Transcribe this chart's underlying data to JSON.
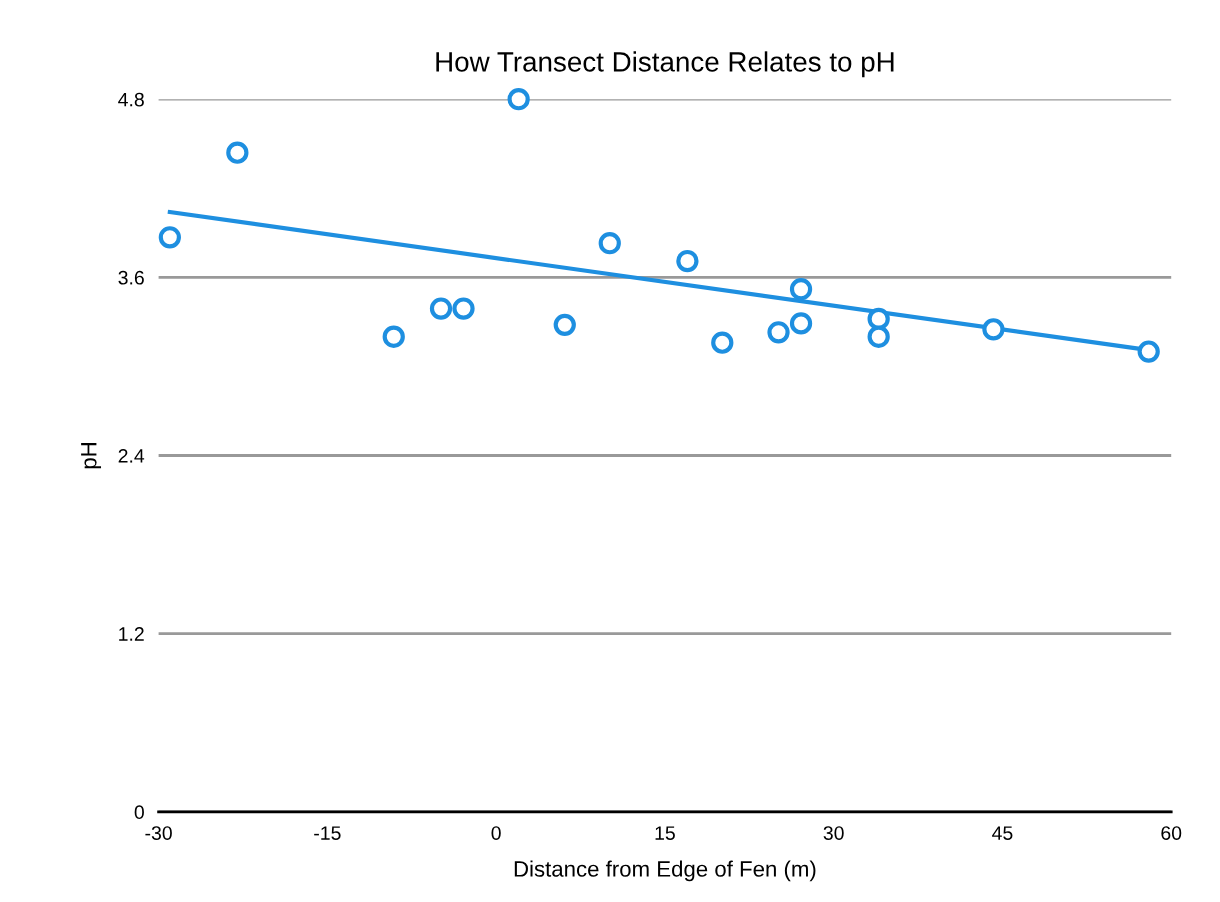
{
  "chart_data": {
    "type": "scatter",
    "title": "How Transect Distance Relates to pH",
    "xlabel": "Distance from Edge of Fen (m)",
    "ylabel": "pH",
    "xlim": [
      -30,
      60
    ],
    "xticks": [
      -30,
      -15,
      0,
      15,
      30,
      45,
      60
    ],
    "ylim": [
      0,
      4.8
    ],
    "yticks": [
      0,
      1.2,
      2.4,
      3.6,
      4.8
    ],
    "grid": "y",
    "legend": false,
    "series": [
      {
        "color": "#1e8fe0",
        "marker": "circle",
        "x": [
          -29,
          -23,
          2,
          -9.1,
          -4.9,
          -2.9,
          6.1,
          10.1,
          17,
          20.1,
          25.1,
          27.1,
          27.1,
          34,
          34,
          44.2,
          58
        ],
        "values": [
          3.87,
          4.44,
          4.8,
          3.2,
          3.39,
          3.39,
          3.28,
          3.83,
          3.71,
          3.16,
          3.23,
          3.52,
          3.29,
          3.32,
          3.2,
          3.25,
          3.1
        ]
      },
      {
        "type": "line",
        "color": "#1e8fe0",
        "marker": "none",
        "x": [
          -29,
          58
        ],
        "values": [
          4.04,
          3.11
        ]
      }
    ]
  }
}
